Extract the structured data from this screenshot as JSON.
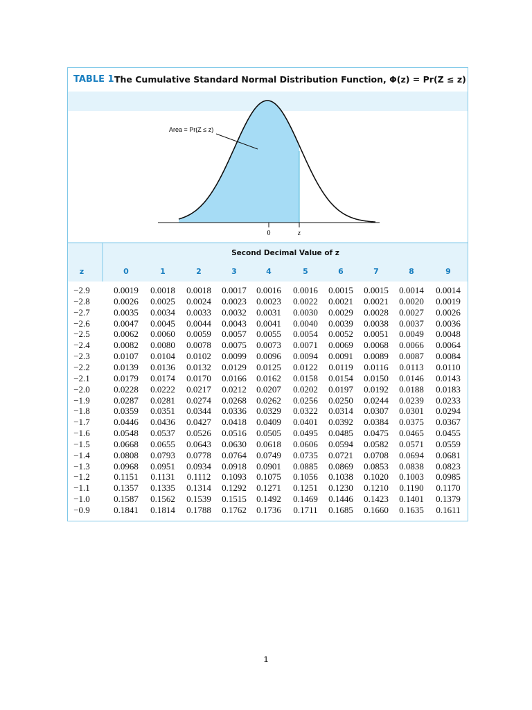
{
  "header": {
    "label": "TABLE 1",
    "title": "The Cumulative Standard Normal Distribution Function, Φ(z) = Pr(Z ≤ z)"
  },
  "figure": {
    "area_label": "Area = Pr(Z ≤ z)",
    "tick_labels": [
      "0",
      "z"
    ]
  },
  "table": {
    "group_header": "Second Decimal Value of z",
    "columns": [
      "z",
      "0",
      "1",
      "2",
      "3",
      "4",
      "5",
      "6",
      "7",
      "8",
      "9"
    ],
    "rows": [
      [
        "−2.9",
        "0.0019",
        "0.0018",
        "0.0018",
        "0.0017",
        "0.0016",
        "0.0016",
        "0.0015",
        "0.0015",
        "0.0014",
        "0.0014"
      ],
      [
        "−2.8",
        "0.0026",
        "0.0025",
        "0.0024",
        "0.0023",
        "0.0023",
        "0.0022",
        "0.0021",
        "0.0021",
        "0.0020",
        "0.0019"
      ],
      [
        "−2.7",
        "0.0035",
        "0.0034",
        "0.0033",
        "0.0032",
        "0.0031",
        "0.0030",
        "0.0029",
        "0.0028",
        "0.0027",
        "0.0026"
      ],
      [
        "−2.6",
        "0.0047",
        "0.0045",
        "0.0044",
        "0.0043",
        "0.0041",
        "0.0040",
        "0.0039",
        "0.0038",
        "0.0037",
        "0.0036"
      ],
      [
        "−2.5",
        "0.0062",
        "0.0060",
        "0.0059",
        "0.0057",
        "0.0055",
        "0.0054",
        "0.0052",
        "0.0051",
        "0.0049",
        "0.0048"
      ],
      [
        "−2.4",
        "0.0082",
        "0.0080",
        "0.0078",
        "0.0075",
        "0.0073",
        "0.0071",
        "0.0069",
        "0.0068",
        "0.0066",
        "0.0064"
      ],
      [
        "−2.3",
        "0.0107",
        "0.0104",
        "0.0102",
        "0.0099",
        "0.0096",
        "0.0094",
        "0.0091",
        "0.0089",
        "0.0087",
        "0.0084"
      ],
      [
        "−2.2",
        "0.0139",
        "0.0136",
        "0.0132",
        "0.0129",
        "0.0125",
        "0.0122",
        "0.0119",
        "0.0116",
        "0.0113",
        "0.0110"
      ],
      [
        "−2.1",
        "0.0179",
        "0.0174",
        "0.0170",
        "0.0166",
        "0.0162",
        "0.0158",
        "0.0154",
        "0.0150",
        "0.0146",
        "0.0143"
      ],
      [
        "−2.0",
        "0.0228",
        "0.0222",
        "0.0217",
        "0.0212",
        "0.0207",
        "0.0202",
        "0.0197",
        "0.0192",
        "0.0188",
        "0.0183"
      ],
      [
        "−1.9",
        "0.0287",
        "0.0281",
        "0.0274",
        "0.0268",
        "0.0262",
        "0.0256",
        "0.0250",
        "0.0244",
        "0.0239",
        "0.0233"
      ],
      [
        "−1.8",
        "0.0359",
        "0.0351",
        "0.0344",
        "0.0336",
        "0.0329",
        "0.0322",
        "0.0314",
        "0.0307",
        "0.0301",
        "0.0294"
      ],
      [
        "−1.7",
        "0.0446",
        "0.0436",
        "0.0427",
        "0.0418",
        "0.0409",
        "0.0401",
        "0.0392",
        "0.0384",
        "0.0375",
        "0.0367"
      ],
      [
        "−1.6",
        "0.0548",
        "0.0537",
        "0.0526",
        "0.0516",
        "0.0505",
        "0.0495",
        "0.0485",
        "0.0475",
        "0.0465",
        "0.0455"
      ],
      [
        "−1.5",
        "0.0668",
        "0.0655",
        "0.0643",
        "0.0630",
        "0.0618",
        "0.0606",
        "0.0594",
        "0.0582",
        "0.0571",
        "0.0559"
      ],
      [
        "−1.4",
        "0.0808",
        "0.0793",
        "0.0778",
        "0.0764",
        "0.0749",
        "0.0735",
        "0.0721",
        "0.0708",
        "0.0694",
        "0.0681"
      ],
      [
        "−1.3",
        "0.0968",
        "0.0951",
        "0.0934",
        "0.0918",
        "0.0901",
        "0.0885",
        "0.0869",
        "0.0853",
        "0.0838",
        "0.0823"
      ],
      [
        "−1.2",
        "0.1151",
        "0.1131",
        "0.1112",
        "0.1093",
        "0.1075",
        "0.1056",
        "0.1038",
        "0.1020",
        "0.1003",
        "0.0985"
      ],
      [
        "−1.1",
        "0.1357",
        "0.1335",
        "0.1314",
        "0.1292",
        "0.1271",
        "0.1251",
        "0.1230",
        "0.1210",
        "0.1190",
        "0.1170"
      ],
      [
        "−1.0",
        "0.1587",
        "0.1562",
        "0.1539",
        "0.1515",
        "0.1492",
        "0.1469",
        "0.1446",
        "0.1423",
        "0.1401",
        "0.1379"
      ],
      [
        "−0.9",
        "0.1841",
        "0.1814",
        "0.1788",
        "0.1762",
        "0.1736",
        "0.1711",
        "0.1685",
        "0.1660",
        "0.1635",
        "0.1611"
      ]
    ]
  },
  "footer": {
    "page_number": "1"
  }
}
